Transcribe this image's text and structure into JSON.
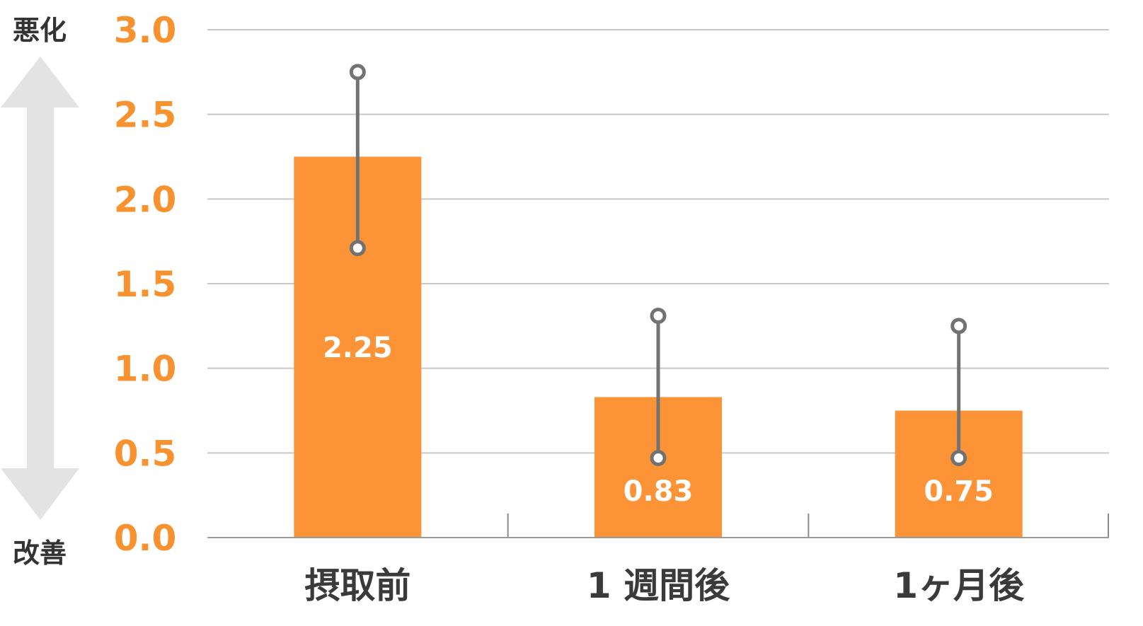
{
  "chart_data": {
    "type": "bar",
    "categories": [
      "摂取前",
      "1 週間後",
      "1ヶ月後"
    ],
    "values": [
      2.25,
      0.83,
      0.75
    ],
    "value_labels": [
      "2.25",
      "0.83",
      "0.75"
    ],
    "error_bars": [
      {
        "low": 1.71,
        "high": 2.75
      },
      {
        "low": 0.47,
        "high": 1.31
      },
      {
        "low": 0.47,
        "high": 1.25
      }
    ],
    "ylim": [
      0,
      3.0
    ],
    "yticks": [
      0.0,
      0.5,
      1.0,
      1.5,
      2.0,
      2.5,
      3.0
    ],
    "ytick_labels": [
      "0.0",
      "0.5",
      "1.0",
      "1.5",
      "2.0",
      "2.5",
      "3.0"
    ],
    "grid": true,
    "scale_labels": {
      "top": "悪化",
      "bottom": "改善"
    },
    "colors": {
      "bar": "#fc9336",
      "ytick": "#f7922f",
      "error_bar": "#727272",
      "grid": "#c8c8c8",
      "arrow": "#e3e3e3"
    }
  }
}
